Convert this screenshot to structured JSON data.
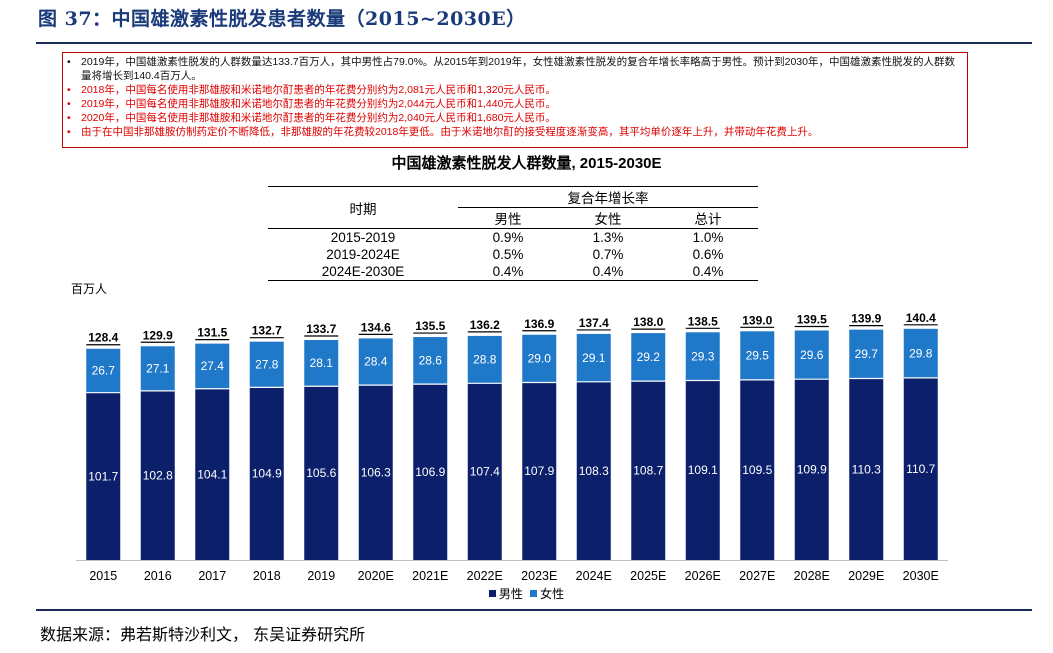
{
  "figure": {
    "title": "图 37：中国雄激素性脱发患者数量（2015~2030E）",
    "source": "数据来源：弗若斯特沙利文， 东吴证券研究所"
  },
  "notes": [
    {
      "bullet": "•",
      "color": "black",
      "text": "2019年，中国雄激素性脱发的人群数量达133.7百万人，其中男性占79.0%。从2015年到2019年，女性雄激素性脱发的复合年增长率略高于男性。预计到2030年，中国雄激素性脱发的人群数量将增长到140.4百万人。"
    },
    {
      "bullet": "•",
      "color": "red",
      "text": "2018年，中国每名使用非那雄胺和米诺地尔酊患者的年花费分别约为2,081元人民币和1,320元人民币。"
    },
    {
      "bullet": "•",
      "color": "red",
      "text": "2019年，中国每名使用非那雄胺和米诺地尔酊患者的年花费分别约为2,044元人民币和1,440元人民币。"
    },
    {
      "bullet": "•",
      "color": "red",
      "text": "2020年，中国每名使用非那雄胺和米诺地尔酊患者的年花费分别约为2,040元人民币和1,680元人民币。"
    },
    {
      "bullet": "•",
      "color": "red",
      "text": "由于在中国非那雄胺仿制药定价不断降低，非那雄胺的年花费较2018年更低。由于米诺地尔酊的接受程度逐渐变高，其平均单价逐年上升，并带动年花费上升。"
    }
  ],
  "growth_table": {
    "period_header": "时期",
    "cagr_header": "复合年增长率",
    "cols": [
      "男性",
      "女性",
      "总计"
    ],
    "rows": [
      {
        "period": "2015-2019",
        "male": "0.9%",
        "female": "1.3%",
        "total": "1.0%"
      },
      {
        "period": "2019-2024E",
        "male": "0.5%",
        "female": "0.7%",
        "total": "0.6%"
      },
      {
        "period": "2024E-2030E",
        "male": "0.4%",
        "female": "0.4%",
        "total": "0.4%"
      }
    ]
  },
  "colors": {
    "male": "#0b1f6b",
    "female": "#1f78c8",
    "title": "#1a3a7a",
    "note_red": "#e00000"
  },
  "chart_data": {
    "type": "bar",
    "stacked": true,
    "title": "中国雄激素性脱发人群数量, 2015-2030E",
    "ylabel": "百万人",
    "xlabel": "",
    "ylim": [
      0,
      140.4
    ],
    "categories": [
      "2015",
      "2016",
      "2017",
      "2018",
      "2019",
      "2020E",
      "2021E",
      "2022E",
      "2023E",
      "2024E",
      "2025E",
      "2026E",
      "2027E",
      "2028E",
      "2029E",
      "2030E"
    ],
    "series": [
      {
        "name": "男性",
        "values": [
          101.7,
          102.8,
          104.1,
          104.9,
          105.6,
          106.3,
          106.9,
          107.4,
          107.9,
          108.3,
          108.7,
          109.1,
          109.5,
          109.9,
          110.3,
          110.7
        ]
      },
      {
        "name": "女性",
        "values": [
          26.7,
          27.1,
          27.4,
          27.8,
          28.1,
          28.4,
          28.6,
          28.8,
          29.0,
          29.1,
          29.2,
          29.3,
          29.5,
          29.6,
          29.7,
          29.8
        ]
      }
    ],
    "totals": [
      128.4,
      129.9,
      131.5,
      132.7,
      133.7,
      134.6,
      135.5,
      136.2,
      136.9,
      137.4,
      138.0,
      138.5,
      139.0,
      139.5,
      139.9,
      140.4
    ],
    "legend": [
      "男性",
      "女性"
    ],
    "legend_position": "bottom",
    "grid": false
  }
}
